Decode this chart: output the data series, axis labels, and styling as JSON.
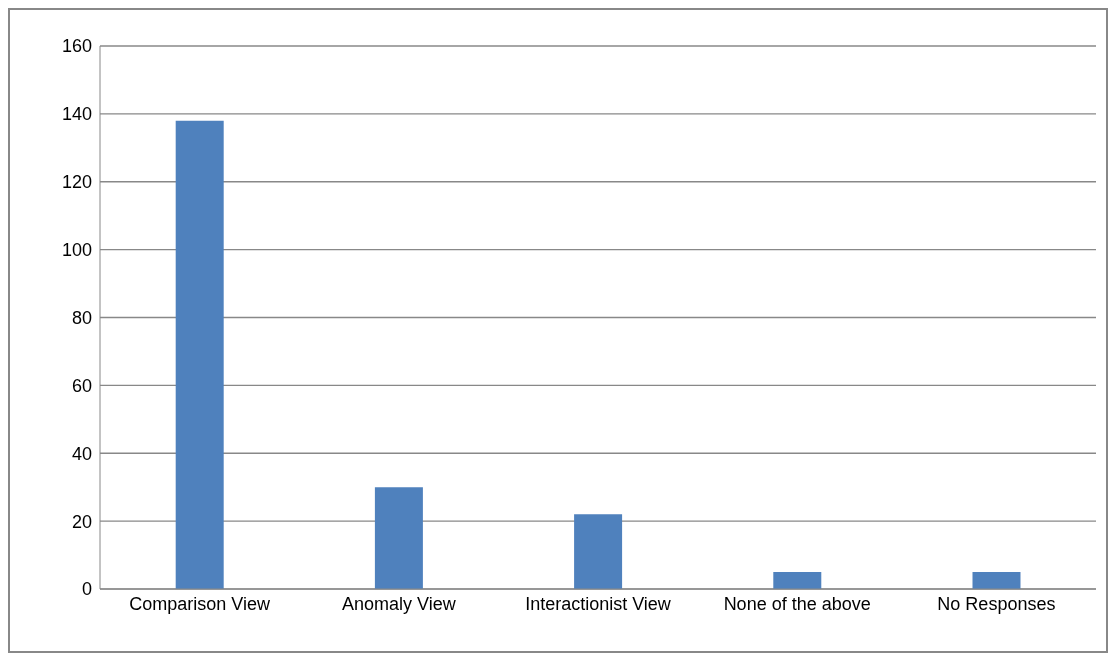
{
  "chart_data": {
    "type": "bar",
    "categories": [
      "Comparison View",
      "Anomaly View",
      "Interactionist View",
      "None of the above",
      "No Responses"
    ],
    "values": [
      138,
      30,
      22,
      5,
      5
    ],
    "color": "#4f81bd",
    "ylim": [
      0,
      160
    ],
    "yticks": [
      0,
      20,
      40,
      60,
      80,
      100,
      120,
      140,
      160
    ],
    "grid": "y"
  }
}
